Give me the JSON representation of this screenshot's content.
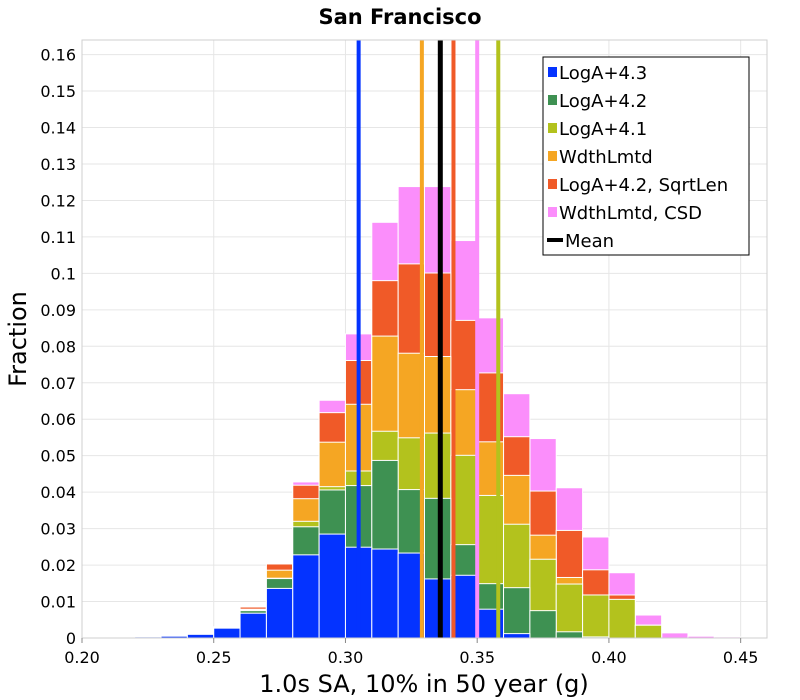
{
  "chart_data": {
    "type": "bar",
    "stacked": true,
    "title": "San Francisco",
    "xlabel": "1.0s SA, 10% in 50 year (g)",
    "ylabel": "Fraction",
    "xlim": [
      0.2,
      0.46
    ],
    "ylim": [
      0,
      0.164
    ],
    "bin_width": 0.01,
    "grid": true,
    "legend_position": "top-right",
    "x_ticks": [
      "0.20",
      "0.25",
      "0.30",
      "0.35",
      "0.40",
      "0.45"
    ],
    "x_tick_values": [
      0.2,
      0.25,
      0.3,
      0.35,
      0.4,
      0.45
    ],
    "y_ticks": [
      "0",
      "0.01",
      "0.02",
      "0.03",
      "0.04",
      "0.05",
      "0.06",
      "0.07",
      "0.08",
      "0.09",
      "0.1",
      "0.11",
      "0.12",
      "0.13",
      "0.14",
      "0.15",
      "0.16"
    ],
    "y_tick_values": [
      0,
      0.01,
      0.02,
      0.03,
      0.04,
      0.05,
      0.06,
      0.07,
      0.08,
      0.09,
      0.1,
      0.11,
      0.12,
      0.13,
      0.14,
      0.15,
      0.16
    ],
    "series": [
      {
        "name": "LogA+4.3",
        "color": "#0433ff",
        "bins": [
          [
            0.22,
            0.0003
          ],
          [
            0.23,
            0.0005
          ],
          [
            0.24,
            0.001
          ],
          [
            0.25,
            0.0027
          ],
          [
            0.26,
            0.0068
          ],
          [
            0.27,
            0.0136
          ],
          [
            0.28,
            0.0228
          ],
          [
            0.29,
            0.0285
          ],
          [
            0.3,
            0.0249
          ],
          [
            0.31,
            0.0244
          ],
          [
            0.32,
            0.0233
          ],
          [
            0.33,
            0.0162
          ],
          [
            0.34,
            0.0172
          ],
          [
            0.35,
            0.0079
          ],
          [
            0.36,
            0.0012
          ]
        ]
      },
      {
        "name": "LogA+4.2",
        "color": "#3e9152",
        "bins": [
          [
            0.23,
            0.0003
          ],
          [
            0.24,
            0.001
          ],
          [
            0.25,
            0.0028
          ],
          [
            0.26,
            0.0075
          ],
          [
            0.27,
            0.0163
          ],
          [
            0.28,
            0.0305
          ],
          [
            0.29,
            0.0406
          ],
          [
            0.3,
            0.0418
          ],
          [
            0.31,
            0.0487
          ],
          [
            0.32,
            0.0407
          ],
          [
            0.33,
            0.0383
          ],
          [
            0.34,
            0.0256
          ],
          [
            0.35,
            0.0149
          ],
          [
            0.36,
            0.0138
          ],
          [
            0.37,
            0.0075
          ],
          [
            0.38,
            0.0017
          ],
          [
            0.39,
            0.0003
          ]
        ]
      },
      {
        "name": "LogA+4.1",
        "color": "#b3c21d",
        "bins": [
          [
            0.26,
            0.0077
          ],
          [
            0.27,
            0.0164
          ],
          [
            0.28,
            0.032
          ],
          [
            0.29,
            0.0415
          ],
          [
            0.3,
            0.0458
          ],
          [
            0.31,
            0.0567
          ],
          [
            0.32,
            0.0549
          ],
          [
            0.33,
            0.0562
          ],
          [
            0.34,
            0.0501
          ],
          [
            0.35,
            0.0391
          ],
          [
            0.36,
            0.0312
          ],
          [
            0.37,
            0.0216
          ],
          [
            0.38,
            0.0148
          ],
          [
            0.39,
            0.0118
          ],
          [
            0.4,
            0.0106
          ],
          [
            0.41,
            0.0035
          ]
        ]
      },
      {
        "name": "WdthLmtd",
        "color": "#f5a623",
        "bins": [
          [
            0.25,
            0.0029
          ],
          [
            0.26,
            0.0079
          ],
          [
            0.27,
            0.0186
          ],
          [
            0.28,
            0.0382
          ],
          [
            0.29,
            0.0537
          ],
          [
            0.3,
            0.0641
          ],
          [
            0.31,
            0.0828
          ],
          [
            0.32,
            0.0781
          ],
          [
            0.33,
            0.0772
          ],
          [
            0.34,
            0.0681
          ],
          [
            0.35,
            0.0538
          ],
          [
            0.36,
            0.0446
          ],
          [
            0.37,
            0.0282
          ],
          [
            0.38,
            0.0166
          ],
          [
            0.39,
            0.0103
          ],
          [
            0.4,
            0.0104
          ],
          [
            0.41,
            0.0035
          ]
        ]
      },
      {
        "name": "LogA+4.2, SqrtLen",
        "color": "#f05a28",
        "bins": [
          [
            0.25,
            0.003
          ],
          [
            0.26,
            0.0085
          ],
          [
            0.27,
            0.0203
          ],
          [
            0.28,
            0.0419
          ],
          [
            0.29,
            0.0618
          ],
          [
            0.3,
            0.0761
          ],
          [
            0.31,
            0.098
          ],
          [
            0.32,
            0.1026
          ],
          [
            0.33,
            0.1001
          ],
          [
            0.34,
            0.0871
          ],
          [
            0.35,
            0.0727
          ],
          [
            0.36,
            0.0552
          ],
          [
            0.37,
            0.0403
          ],
          [
            0.38,
            0.0295
          ],
          [
            0.39,
            0.0187
          ],
          [
            0.4,
            0.0118
          ],
          [
            0.41,
            0.0035
          ]
        ]
      },
      {
        "name": "WdthLmtd, CSD",
        "color": "#fb8efb",
        "bins": [
          [
            0.21,
            0.0002
          ],
          [
            0.22,
            0.0002
          ],
          [
            0.23,
            0.0004
          ],
          [
            0.24,
            0.0012
          ],
          [
            0.25,
            0.0031
          ],
          [
            0.26,
            0.0086
          ],
          [
            0.27,
            0.0205
          ],
          [
            0.28,
            0.0428
          ],
          [
            0.29,
            0.0652
          ],
          [
            0.3,
            0.0834
          ],
          [
            0.31,
            0.114
          ],
          [
            0.32,
            0.1238
          ],
          [
            0.33,
            0.1238
          ],
          [
            0.34,
            0.109
          ],
          [
            0.35,
            0.0878
          ],
          [
            0.36,
            0.067
          ],
          [
            0.37,
            0.0547
          ],
          [
            0.38,
            0.0412
          ],
          [
            0.39,
            0.0277
          ],
          [
            0.4,
            0.0179
          ],
          [
            0.41,
            0.0063
          ],
          [
            0.42,
            0.0014
          ],
          [
            0.43,
            0.0005
          ],
          [
            0.44,
            0.0003
          ]
        ]
      }
    ],
    "lines": [
      {
        "name": "LogA+4.3",
        "color": "#0433ff",
        "x": 0.305
      },
      {
        "name": "WdthLmtd",
        "color": "#f5a623",
        "x": 0.329
      },
      {
        "name": "LogA+4.2, SqrtLen",
        "color": "#f05a28",
        "x": 0.341
      },
      {
        "name": "WdthLmtd, CSD",
        "color": "#fb8efb",
        "x": 0.35
      },
      {
        "name": "LogA+4.1",
        "color": "#b3c21d",
        "x": 0.358
      },
      {
        "name": "Mean",
        "color": "#000000",
        "x": 0.336
      }
    ],
    "legend": [
      {
        "label": "LogA+4.3",
        "color": "#0433ff"
      },
      {
        "label": "LogA+4.2",
        "color": "#3e9152"
      },
      {
        "label": "LogA+4.1",
        "color": "#b3c21d"
      },
      {
        "label": "WdthLmtd",
        "color": "#f5a623"
      },
      {
        "label": "LogA+4.2, SqrtLen",
        "color": "#f05a28"
      },
      {
        "label": "WdthLmtd, CSD",
        "color": "#fb8efb"
      },
      {
        "label": "Mean",
        "color": "#000000",
        "kind": "line"
      }
    ]
  }
}
